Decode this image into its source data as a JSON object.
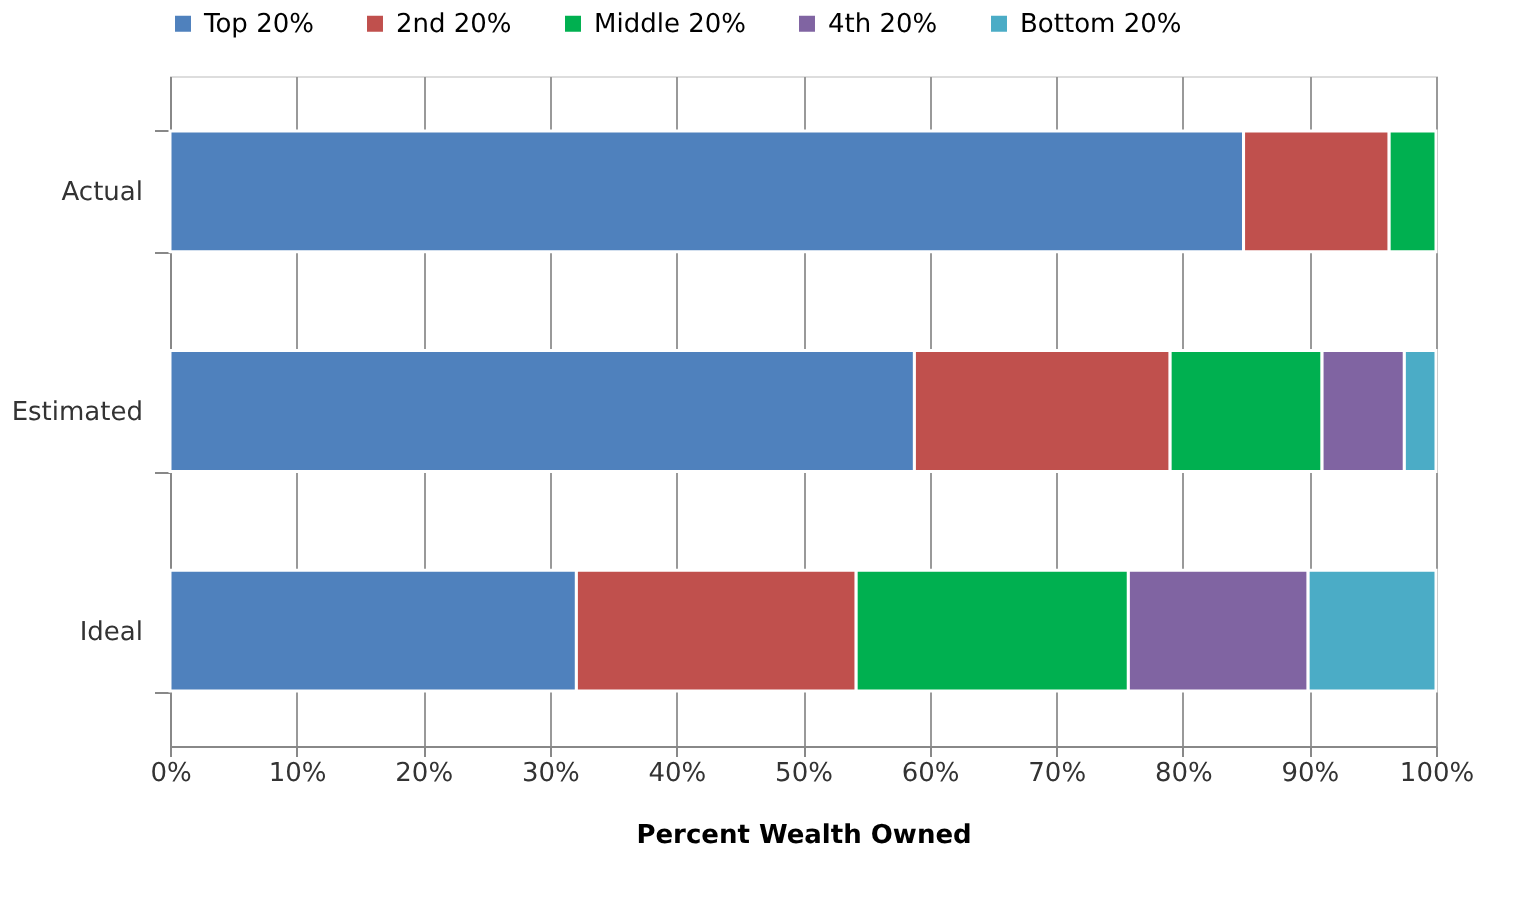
{
  "chart_data": {
    "type": "bar",
    "orientation": "horizontal",
    "stacked": true,
    "xlabel": "Percent Wealth Owned",
    "categories": [
      "Actual",
      "Estimated",
      "Ideal"
    ],
    "series": [
      {
        "name": "Top 20%",
        "color": "#4f81bd",
        "values": [
          84.8,
          58.8,
          32.1
        ]
      },
      {
        "name": "2nd 20%",
        "color": "#c0504d",
        "values": [
          11.5,
          20.2,
          22.1
        ]
      },
      {
        "name": "Middle 20%",
        "color": "#00b050",
        "values": [
          3.7,
          12.0,
          21.5
        ]
      },
      {
        "name": "4th 20%",
        "color": "#8064a2",
        "values": [
          null,
          6.5,
          14.2
        ]
      },
      {
        "name": "Bottom 20%",
        "color": "#4bacc6",
        "values": [
          null,
          2.5,
          10.1
        ]
      }
    ],
    "xlim": [
      0,
      100
    ],
    "xticks": [
      {
        "value": 0,
        "label": "0%"
      },
      {
        "value": 10,
        "label": "10%"
      },
      {
        "value": 20,
        "label": "20%"
      },
      {
        "value": 30,
        "label": "30%"
      },
      {
        "value": 40,
        "label": "40%"
      },
      {
        "value": 50,
        "label": "50%"
      },
      {
        "value": 60,
        "label": "60%"
      },
      {
        "value": 70,
        "label": "70%"
      },
      {
        "value": 80,
        "label": "80%"
      },
      {
        "value": 90,
        "label": "90%"
      },
      {
        "value": 100,
        "label": "100%"
      }
    ],
    "grid": "x",
    "legend": "top"
  }
}
